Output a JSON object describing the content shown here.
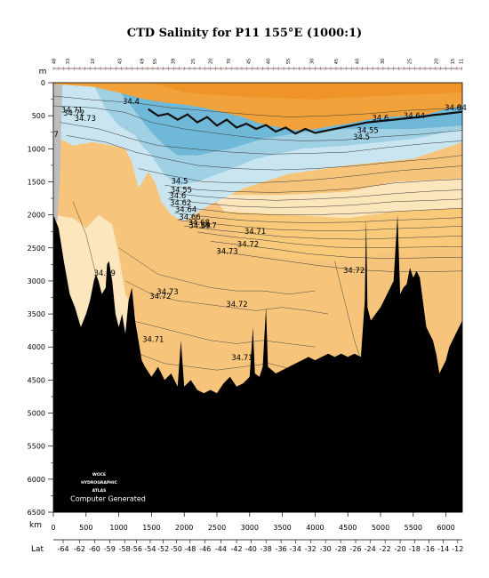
{
  "title": "CTD Salinity for P11 155°E (1000:1)",
  "chart_data": {
    "type": "heatmap",
    "title": "CTD Salinity for P11 155°E (1000:1)",
    "y_unit": "m",
    "x_unit": "km",
    "lat_label": "Lat",
    "ylim": [
      6500,
      0
    ],
    "xlim": [
      0,
      6250
    ],
    "y_ticks": [
      0,
      500,
      1000,
      1500,
      2000,
      2500,
      3000,
      3500,
      4000,
      4500,
      5000,
      5500,
      6000,
      6500
    ],
    "x_ticks": [
      0,
      500,
      1000,
      1500,
      2000,
      2500,
      3000,
      3500,
      4000,
      4500,
      5000,
      5500,
      6000
    ],
    "lat_ticks": [
      {
        "km": 150,
        "label": "-64"
      },
      {
        "km": 400,
        "label": "-62"
      },
      {
        "km": 630,
        "label": "-60"
      },
      {
        "km": 860,
        "label": "-59"
      },
      {
        "km": 1090,
        "label": "-58"
      },
      {
        "km": 1270,
        "label": "-56"
      },
      {
        "km": 1480,
        "label": "-54"
      },
      {
        "km": 1680,
        "label": "-52"
      },
      {
        "km": 1880,
        "label": "-50"
      },
      {
        "km": 2090,
        "label": "-48"
      },
      {
        "km": 2320,
        "label": "-46"
      },
      {
        "km": 2560,
        "label": "-44"
      },
      {
        "km": 2800,
        "label": "-42"
      },
      {
        "km": 3020,
        "label": "-40"
      },
      {
        "km": 3250,
        "label": "-38"
      },
      {
        "km": 3480,
        "label": "-36"
      },
      {
        "km": 3700,
        "label": "-34"
      },
      {
        "km": 3930,
        "label": "-32"
      },
      {
        "km": 4160,
        "label": "-30"
      },
      {
        "km": 4390,
        "label": "-28"
      },
      {
        "km": 4620,
        "label": "-26"
      },
      {
        "km": 4840,
        "label": "-24"
      },
      {
        "km": 5070,
        "label": "-22"
      },
      {
        "km": 5300,
        "label": "-20"
      },
      {
        "km": 5520,
        "label": "-18"
      },
      {
        "km": 5740,
        "label": "-16"
      },
      {
        "km": 5960,
        "label": "-14"
      },
      {
        "km": 6180,
        "label": "-12"
      }
    ],
    "station_labels": [
      {
        "km": 10,
        "label": "48"
      },
      {
        "km": 220,
        "label": "33"
      },
      {
        "km": 600,
        "label": "10"
      },
      {
        "km": 1010,
        "label": "43"
      },
      {
        "km": 1350,
        "label": "49"
      },
      {
        "km": 1550,
        "label": "55"
      },
      {
        "km": 1830,
        "label": "39"
      },
      {
        "km": 2130,
        "label": "25"
      },
      {
        "km": 2400,
        "label": "20"
      },
      {
        "km": 2680,
        "label": "70"
      },
      {
        "km": 2980,
        "label": "45"
      },
      {
        "km": 3280,
        "label": "40"
      },
      {
        "km": 3590,
        "label": "55"
      },
      {
        "km": 3950,
        "label": "30"
      },
      {
        "km": 4320,
        "label": "45"
      },
      {
        "km": 4640,
        "label": "40"
      },
      {
        "km": 5030,
        "label": "30"
      },
      {
        "km": 5440,
        "label": "25"
      },
      {
        "km": 5850,
        "label": "20"
      },
      {
        "km": 6100,
        "label": "15"
      },
      {
        "km": 6230,
        "label": "11"
      }
    ],
    "contour_labels": [
      {
        "km": 120,
        "depth": 450,
        "text": "34.71"
      },
      {
        "km": 150,
        "depth": 500,
        "text": "34.72"
      },
      {
        "km": 320,
        "depth": 580,
        "text": "34.73"
      },
      {
        "km": 1060,
        "depth": 320,
        "text": "34.4"
      },
      {
        "km": 5,
        "depth": 820,
        "text": "7"
      },
      {
        "km": 1800,
        "depth": 1530,
        "text": "34.5"
      },
      {
        "km": 1790,
        "depth": 1660,
        "text": "34.55"
      },
      {
        "km": 1770,
        "depth": 1750,
        "text": "34.6"
      },
      {
        "km": 1780,
        "depth": 1860,
        "text": "34.62"
      },
      {
        "km": 1860,
        "depth": 1960,
        "text": "34.64"
      },
      {
        "km": 1920,
        "depth": 2070,
        "text": "34.66"
      },
      {
        "km": 2060,
        "depth": 2150,
        "text": "34.68"
      },
      {
        "km": 2070,
        "depth": 2200,
        "text": "34.69"
      },
      {
        "km": 2240,
        "depth": 2200,
        "text": "34.7"
      },
      {
        "km": 2920,
        "depth": 2290,
        "text": "34.71"
      },
      {
        "km": 2810,
        "depth": 2480,
        "text": "34.72"
      },
      {
        "km": 2490,
        "depth": 2590,
        "text": "34.73"
      },
      {
        "km": 620,
        "depth": 2920,
        "text": "34.69"
      },
      {
        "km": 1580,
        "depth": 3200,
        "text": "34.73"
      },
      {
        "km": 1470,
        "depth": 3270,
        "text": "34.72"
      },
      {
        "km": 2640,
        "depth": 3390,
        "text": "34.72"
      },
      {
        "km": 1360,
        "depth": 3920,
        "text": "34.71"
      },
      {
        "km": 2720,
        "depth": 4200,
        "text": "34.71"
      },
      {
        "km": 4430,
        "depth": 2880,
        "text": "34.72"
      },
      {
        "km": 4640,
        "depth": 760,
        "text": "34.55"
      },
      {
        "km": 4580,
        "depth": 860,
        "text": "34.5"
      },
      {
        "km": 4870,
        "depth": 570,
        "text": "34.6"
      },
      {
        "km": 5350,
        "depth": 540,
        "text": "34.64"
      },
      {
        "km": 5980,
        "depth": 420,
        "text": "34.6"
      },
      {
        "km": 6170,
        "depth": 420,
        "text": "34"
      }
    ],
    "legend_logo": [
      "WOCE",
      "HYDROGRAPHIC",
      "ATLAS"
    ],
    "credit": "Computer Generated",
    "colors": {
      "surface_orange": "#f2a23a",
      "light_orange": "#f7c978",
      "core_tan": "#f6c57b",
      "cream": "#fbe6bd",
      "light_blue": "#c9e5f0",
      "mid_blue": "#9fd0e4",
      "deep_blue": "#6fb8d8",
      "seafloor": "#000000",
      "grey_wedge": "#bdbdbd",
      "contour": "#3a3a3a"
    }
  }
}
